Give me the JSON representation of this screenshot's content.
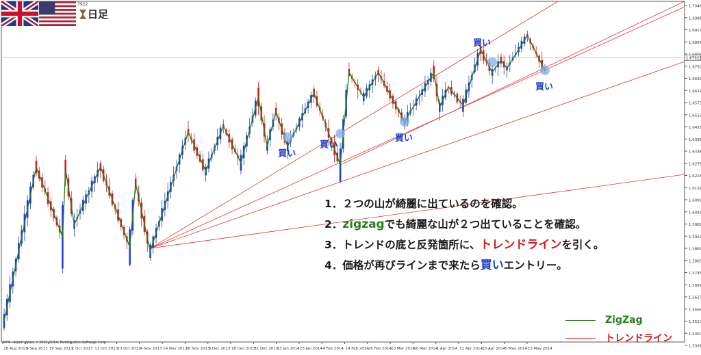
{
  "header": {
    "timeframe_label": "日足",
    "timeframe_icon": "hourglass-icon",
    "price_small": "7922",
    "flags": [
      "uk-flag-icon",
      "us-flag-icon"
    ]
  },
  "chart_data": {
    "type": "candlestick",
    "x_ticks": [
      "28 Aug 2013",
      "9 Sep 2013",
      "19 Sep 2013",
      "1 Oct 2013",
      "11 Oct 2013",
      "23 Oct 2013",
      "4 Nov 2013",
      "14 Nov 2013",
      "26 Nov 2013",
      "6 Dec 2013",
      "18 Dec 2013",
      "31 Dec 2013",
      "13 Jan 2014",
      "23 Jan 2014",
      "4 Feb 2014",
      "14 Feb 2014",
      "26 Feb 2014",
      "10 Mar 2014",
      "20 Mar 2014",
      "1 Apr 2014",
      "11 Apr 2014",
      "23 Apr 2014",
      "5 May 2014",
      "15 May 2014"
    ],
    "y_ticks": [
      "1.70460",
      "1.69860",
      "1.69275",
      "1.68675",
      "1.68090",
      "1.67505",
      "1.66905",
      "1.66320",
      "1.65735",
      "1.65135",
      "1.64550",
      "1.63950",
      "1.63365",
      "1.62780",
      "1.62180",
      "1.61595",
      "1.60995",
      "1.60410",
      "1.59825",
      "1.59225",
      "1.58640",
      "1.58055",
      "1.57455",
      "1.56870",
      "1.56270",
      "1.55685",
      "1.55100",
      "1.54500",
      "1.53915"
    ],
    "ylim": [
      1.53915,
      1.7046
    ],
    "current_price": "1.67922",
    "zigzag_points": [
      [
        0,
        1.551
      ],
      [
        11,
        1.626
      ],
      [
        20,
        1.592
      ],
      [
        21,
        1.625
      ],
      [
        24,
        1.598
      ],
      [
        33,
        1.626
      ],
      [
        43,
        1.587
      ],
      [
        45,
        1.618
      ],
      [
        50,
        1.585
      ],
      [
        63,
        1.643
      ],
      [
        69,
        1.624
      ],
      [
        75,
        1.646
      ],
      [
        81,
        1.628
      ],
      [
        87,
        1.66
      ],
      [
        90,
        1.636
      ],
      [
        93,
        1.653
      ],
      [
        97,
        1.636
      ],
      [
        106,
        1.662
      ],
      [
        115,
        1.627
      ],
      [
        118,
        1.672
      ],
      [
        123,
        1.66
      ],
      [
        128,
        1.672
      ],
      [
        137,
        1.648
      ],
      [
        147,
        1.672
      ],
      [
        149,
        1.655
      ],
      [
        152,
        1.665
      ],
      [
        157,
        1.656
      ],
      [
        163,
        1.683
      ],
      [
        167,
        1.672
      ],
      [
        170,
        1.678
      ],
      [
        172,
        1.674
      ],
      [
        179,
        1.69
      ],
      [
        185,
        1.673
      ]
    ],
    "n_bars": 186,
    "trendlines": "four red lines fanning up to the right from the Nov 2013 low (1.5864), plus one from the Feb 2014 low through the Mar 2014 low",
    "buy_markers": [
      "買い",
      "買い",
      "買い",
      "買い",
      "買い"
    ],
    "grid": false,
    "legend": "bottom-right"
  },
  "colors": {
    "bull": "#1e3ec8",
    "bear": "#d2191b",
    "zigzag": "#2a7d1e",
    "trendline": "#e0322e",
    "marker": "#7fb1e3",
    "buy_text": "#1e40c8"
  },
  "notes": [
    {
      "prefix": "1．２つの山が綺麗に出ているのを確認。"
    },
    {
      "hl": "zigzag",
      "suffix": "でも綺麗な山が２つ出ていることを確認。",
      "prefix": "2．"
    },
    {
      "prefix": "3．トレンドの底と反発箇所に、",
      "hl": "トレンドライン",
      "suffix": "を引く。"
    },
    {
      "prefix": "4．価格が再びラインまで来たら",
      "hl": "買い",
      "suffix": "エントリー。"
    }
  ],
  "legend": {
    "zigzag_label": "ZigZag",
    "trend_label": "トレンドライン"
  },
  "credit": "MT4 - Alpari Japan, c 2001-2014, MetaQuotes Software Corp."
}
